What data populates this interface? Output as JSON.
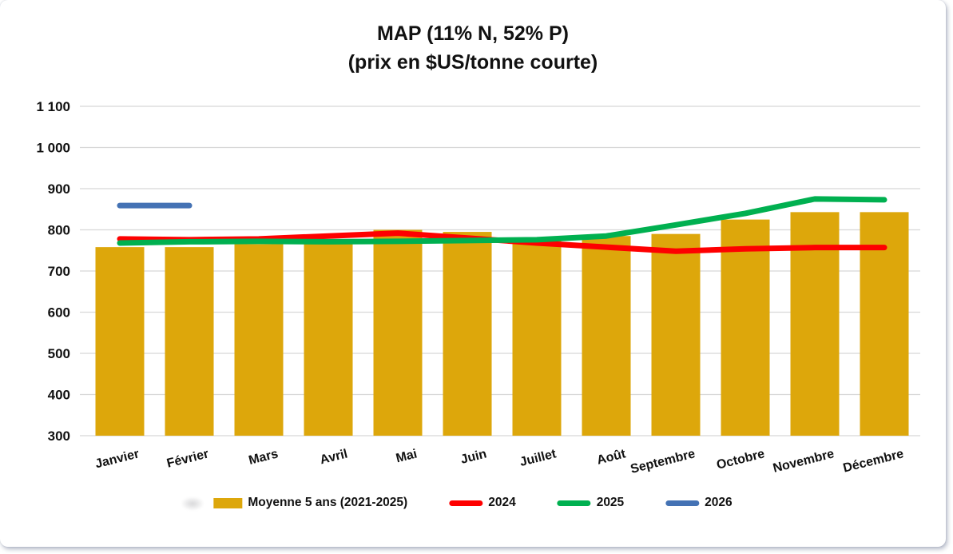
{
  "chart": {
    "title_line1": "MAP (11% N, 52% P)",
    "title_line2": "(prix en $US/tonne courte)"
  },
  "chart_data": {
    "type": "bar",
    "title": "MAP (11% N, 52% P) (prix en $US/tonne courte)",
    "categories": [
      "Janvier",
      "Février",
      "Mars",
      "Avril",
      "Mai",
      "Juin",
      "Juillet",
      "Août",
      "Septembre",
      "Octobre",
      "Novembre",
      "Décembre"
    ],
    "series": [
      {
        "name": "Moyenne 5 ans (2021-2025)",
        "type": "bar",
        "color": "#DDA70B",
        "values": [
          758,
          758,
          765,
          770,
          800,
          795,
          773,
          785,
          790,
          825,
          843,
          843
        ]
      },
      {
        "name": "2024",
        "type": "line",
        "color": "#FE0000",
        "values": [
          778,
          776,
          778,
          785,
          792,
          780,
          768,
          758,
          748,
          754,
          757,
          757
        ]
      },
      {
        "name": "2025",
        "type": "line",
        "color": "#00B050",
        "values": [
          768,
          771,
          772,
          771,
          772,
          774,
          776,
          785,
          812,
          840,
          875,
          873
        ]
      },
      {
        "name": "2026",
        "type": "line",
        "color": "#4472B4",
        "values": [
          859,
          859,
          null,
          null,
          null,
          null,
          null,
          null,
          null,
          null,
          null,
          null
        ]
      }
    ],
    "xlabel": "",
    "ylabel": "",
    "ylim": [
      300,
      1100
    ],
    "y_tick_step": 100,
    "y_ticks": [
      "1 100",
      "1 000",
      "900",
      "800",
      "700",
      "600",
      "500",
      "400",
      "300"
    ],
    "grid": true,
    "gridline_color": "#D8D8D8",
    "legend_position": "bottom"
  }
}
